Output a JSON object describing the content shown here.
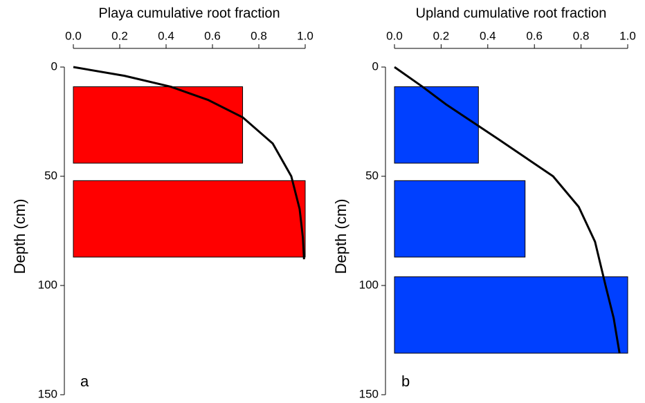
{
  "chart_data": [
    {
      "type": "bar",
      "orientation": "horizontal",
      "title": "Playa cumulative root fraction",
      "panel_label": "a",
      "y_label": "Depth (cm)",
      "depth_intervals": [
        [
          9,
          44
        ],
        [
          52,
          87
        ]
      ],
      "values": [
        0.73,
        1.0
      ],
      "color": "#ff0000",
      "curve": {
        "depth": [
          0,
          4,
          9,
          15,
          23,
          35,
          50,
          65,
          78,
          88
        ],
        "values": [
          0,
          0.22,
          0.42,
          0.58,
          0.73,
          0.86,
          0.94,
          0.976,
          0.99,
          0.995
        ],
        "color": "#000000"
      },
      "xlim": [
        0,
        1
      ],
      "xticks": [
        {
          "value": 0,
          "label": "0.0"
        },
        0.2,
        0.4,
        0.6,
        0.8,
        {
          "value": 1,
          "label": "1.0"
        }
      ],
      "ylim": [
        0,
        150
      ],
      "y_inverted": true,
      "yticks": [
        0,
        50,
        100,
        150
      ]
    },
    {
      "type": "bar",
      "orientation": "horizontal",
      "title": "Upland cumulative root fraction",
      "panel_label": "b",
      "y_label": "Depth (cm)",
      "depth_intervals": [
        [
          9,
          44
        ],
        [
          52,
          87
        ],
        [
          96,
          131
        ]
      ],
      "values": [
        0.36,
        0.56,
        1.0
      ],
      "color": "#0040ff",
      "curve": {
        "depth": [
          0,
          9,
          17,
          33,
          50,
          64,
          80,
          100,
          115,
          131
        ],
        "values": [
          0,
          0.12,
          0.22,
          0.445,
          0.68,
          0.79,
          0.86,
          0.905,
          0.94,
          0.965
        ],
        "color": "#000000"
      },
      "xlim": [
        0,
        1
      ],
      "xticks": [
        {
          "value": 0,
          "label": "0.0"
        },
        0.2,
        0.4,
        0.6,
        0.8,
        {
          "value": 1,
          "label": "1.0"
        }
      ],
      "ylim": [
        0,
        150
      ],
      "y_inverted": true,
      "yticks": [
        0,
        50,
        100,
        150
      ]
    }
  ]
}
